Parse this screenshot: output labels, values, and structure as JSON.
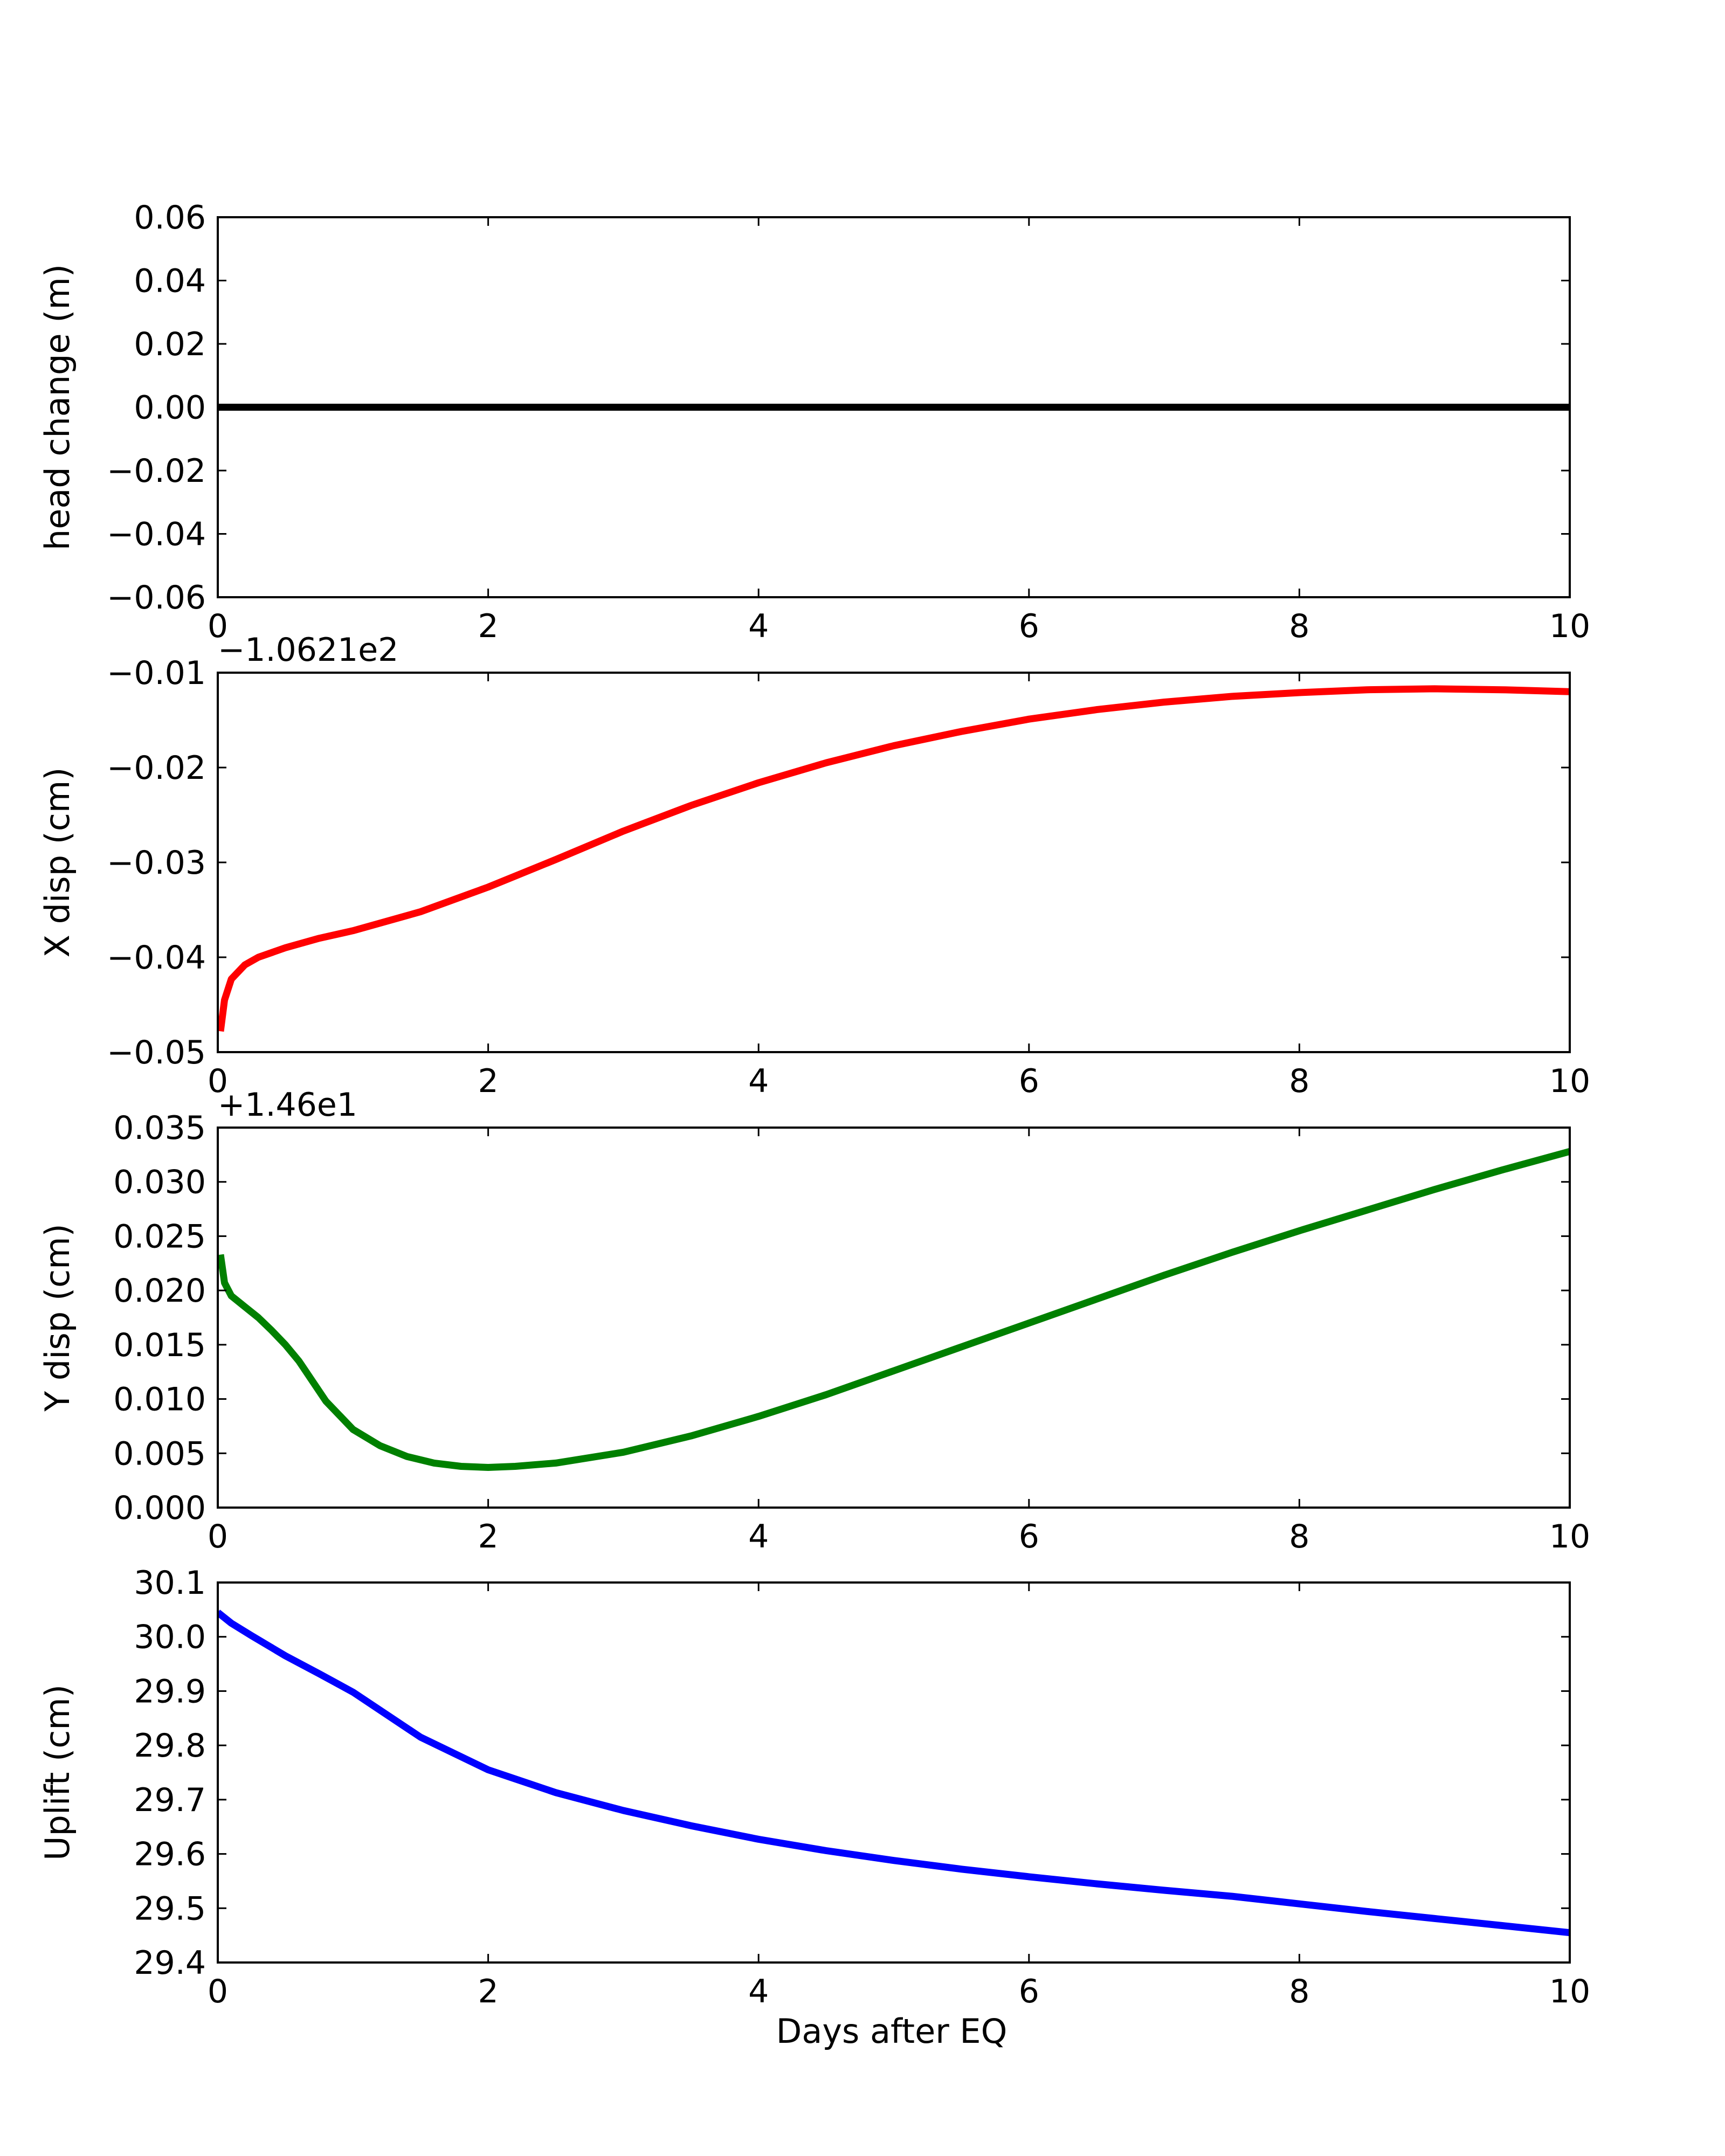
{
  "figure": {
    "xlabel": "Days after EQ"
  },
  "chart_data": [
    {
      "type": "line",
      "ylabel": "head change (m)",
      "offset_label": "",
      "xlim": [
        0,
        10
      ],
      "ylim": [
        -0.06,
        0.06
      ],
      "xticks": [
        0,
        2,
        4,
        6,
        8,
        10
      ],
      "xtick_labels": [
        "0",
        "2",
        "4",
        "6",
        "8",
        "10"
      ],
      "yticks": [
        -0.06,
        -0.04,
        -0.02,
        0.0,
        0.02,
        0.04,
        0.06
      ],
      "ytick_labels": [
        "−0.06",
        "−0.04",
        "−0.02",
        "0.00",
        "0.02",
        "0.04",
        "0.06"
      ],
      "grid": false,
      "series": [
        {
          "color": "#000000",
          "x": [
            0,
            10
          ],
          "y": [
            0.0,
            0.0
          ]
        }
      ]
    },
    {
      "type": "line",
      "ylabel": "X disp (cm)",
      "offset_label": "−1.0621e2",
      "xlim": [
        0,
        10
      ],
      "ylim": [
        -0.05,
        -0.01
      ],
      "xticks": [
        0,
        2,
        4,
        6,
        8,
        10
      ],
      "xtick_labels": [
        "0",
        "2",
        "4",
        "6",
        "8",
        "10"
      ],
      "yticks": [
        -0.05,
        -0.04,
        -0.03,
        -0.02,
        -0.01
      ],
      "ytick_labels": [
        "−0.05",
        "−0.04",
        "−0.03",
        "−0.02",
        "−0.01"
      ],
      "grid": false,
      "series": [
        {
          "color": "#ff0000",
          "x": [
            0.02,
            0.05,
            0.1,
            0.2,
            0.3,
            0.5,
            0.75,
            1.0,
            1.5,
            2.0,
            2.5,
            3.0,
            3.5,
            4.0,
            4.5,
            5.0,
            5.5,
            6.0,
            6.5,
            7.0,
            7.5,
            8.0,
            8.5,
            9.0,
            9.5,
            10.0
          ],
          "y": [
            -0.0478,
            -0.0445,
            -0.0423,
            -0.0408,
            -0.04,
            -0.039,
            -0.038,
            -0.0372,
            -0.0352,
            -0.0326,
            -0.0297,
            -0.0267,
            -0.024,
            -0.0216,
            -0.0195,
            -0.0177,
            -0.0162,
            -0.0149,
            -0.0139,
            -0.0131,
            -0.0125,
            -0.0121,
            -0.0118,
            -0.0117,
            -0.0118,
            -0.012
          ]
        }
      ]
    },
    {
      "type": "line",
      "ylabel": "Y disp (cm)",
      "offset_label": "+1.46e1",
      "xlim": [
        0,
        10
      ],
      "ylim": [
        0.0,
        0.035
      ],
      "xticks": [
        0,
        2,
        4,
        6,
        8,
        10
      ],
      "xtick_labels": [
        "0",
        "2",
        "4",
        "6",
        "8",
        "10"
      ],
      "yticks": [
        0.0,
        0.005,
        0.01,
        0.015,
        0.02,
        0.025,
        0.03,
        0.035
      ],
      "ytick_labels": [
        "0.000",
        "0.005",
        "0.010",
        "0.015",
        "0.020",
        "0.025",
        "0.030",
        "0.035"
      ],
      "grid": false,
      "series": [
        {
          "color": "#008000",
          "x": [
            0.02,
            0.05,
            0.1,
            0.2,
            0.3,
            0.4,
            0.5,
            0.6,
            0.8,
            1.0,
            1.2,
            1.4,
            1.6,
            1.8,
            2.0,
            2.2,
            2.5,
            3.0,
            3.5,
            4.0,
            4.5,
            5.0,
            5.5,
            6.0,
            6.5,
            7.0,
            7.5,
            8.0,
            8.5,
            9.0,
            9.5,
            10.0
          ],
          "y": [
            0.0233,
            0.0207,
            0.0195,
            0.0185,
            0.0175,
            0.0163,
            0.015,
            0.0135,
            0.0098,
            0.0072,
            0.0057,
            0.0047,
            0.0041,
            0.0038,
            0.0037,
            0.0038,
            0.0041,
            0.0051,
            0.0066,
            0.0084,
            0.0104,
            0.0126,
            0.0148,
            0.017,
            0.0192,
            0.0214,
            0.0235,
            0.0255,
            0.0274,
            0.0293,
            0.0311,
            0.0328
          ]
        }
      ]
    },
    {
      "type": "line",
      "ylabel": "Uplift (cm)",
      "offset_label": "",
      "xlim": [
        0,
        10
      ],
      "ylim": [
        29.4,
        30.1
      ],
      "xticks": [
        0,
        2,
        4,
        6,
        8,
        10
      ],
      "xtick_labels": [
        "0",
        "2",
        "4",
        "6",
        "8",
        "10"
      ],
      "yticks": [
        29.4,
        29.5,
        29.6,
        29.7,
        29.8,
        29.9,
        30.0,
        30.1
      ],
      "ytick_labels": [
        "29.4",
        "29.5",
        "29.6",
        "29.7",
        "29.8",
        "29.9",
        "30.0",
        "30.1"
      ],
      "grid": false,
      "series": [
        {
          "color": "#0000ff",
          "x": [
            0.0,
            0.1,
            0.25,
            0.5,
            0.75,
            1.0,
            1.5,
            2.0,
            2.5,
            3.0,
            3.5,
            4.0,
            4.5,
            5.0,
            5.5,
            6.0,
            6.5,
            7.0,
            7.5,
            8.0,
            8.5,
            9.0,
            9.5,
            10.0
          ],
          "y": [
            30.045,
            30.025,
            30.002,
            29.965,
            29.932,
            29.898,
            29.815,
            29.755,
            29.713,
            29.68,
            29.652,
            29.627,
            29.606,
            29.588,
            29.572,
            29.558,
            29.545,
            29.533,
            29.522,
            29.508,
            29.494,
            29.481,
            29.468,
            29.455
          ]
        }
      ]
    }
  ]
}
